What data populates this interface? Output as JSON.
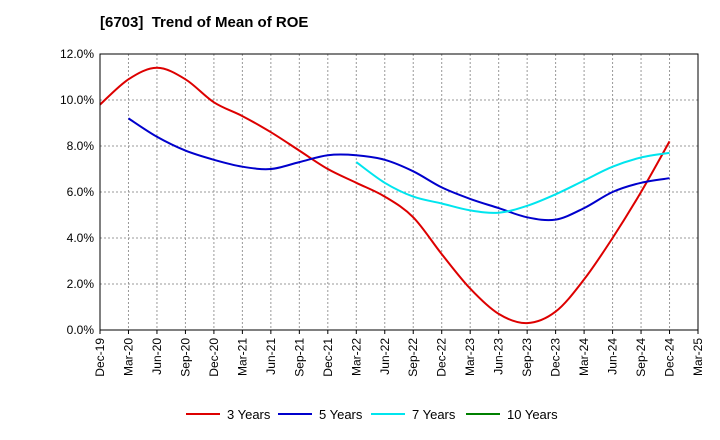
{
  "chart_data": {
    "type": "line",
    "title": "[6703]  Trend of Mean of ROE",
    "xlabel": "",
    "ylabel": "",
    "x": [
      "Dec-19",
      "Mar-20",
      "Jun-20",
      "Sep-20",
      "Dec-20",
      "Mar-21",
      "Jun-21",
      "Sep-21",
      "Dec-21",
      "Mar-22",
      "Jun-22",
      "Sep-22",
      "Dec-22",
      "Mar-23",
      "Jun-23",
      "Sep-23",
      "Dec-23",
      "Mar-24",
      "Jun-24",
      "Sep-24",
      "Dec-24",
      "Mar-25"
    ],
    "ylim": [
      0,
      12
    ],
    "yticks": [
      "0.0%",
      "2.0%",
      "4.0%",
      "6.0%",
      "8.0%",
      "10.0%",
      "12.0%"
    ],
    "grid": true,
    "legend_position": "bottom",
    "series": [
      {
        "name": "3 Years",
        "color": "#dd0000",
        "values": [
          9.8,
          10.9,
          11.4,
          10.9,
          9.9,
          9.3,
          8.6,
          7.8,
          7.0,
          6.4,
          5.8,
          4.9,
          3.3,
          1.8,
          0.7,
          0.3,
          0.8,
          2.2,
          4.0,
          6.0,
          8.2,
          null
        ]
      },
      {
        "name": "5 Years",
        "color": "#0000cc",
        "values": [
          null,
          9.2,
          8.4,
          7.8,
          7.4,
          7.1,
          7.0,
          7.3,
          7.6,
          7.6,
          7.4,
          6.9,
          6.2,
          5.7,
          5.3,
          4.9,
          4.8,
          5.3,
          6.0,
          6.4,
          6.6,
          null
        ]
      },
      {
        "name": "7 Years",
        "color": "#00e5ee",
        "values": [
          null,
          null,
          null,
          null,
          null,
          null,
          null,
          null,
          null,
          7.3,
          6.4,
          5.8,
          5.5,
          5.2,
          5.1,
          5.4,
          5.9,
          6.5,
          7.1,
          7.5,
          7.7,
          null
        ]
      },
      {
        "name": "10 Years",
        "color": "#008000",
        "values": [
          null,
          null,
          null,
          null,
          null,
          null,
          null,
          null,
          null,
          null,
          null,
          null,
          null,
          null,
          null,
          null,
          null,
          null,
          null,
          null,
          null,
          null
        ]
      }
    ]
  }
}
